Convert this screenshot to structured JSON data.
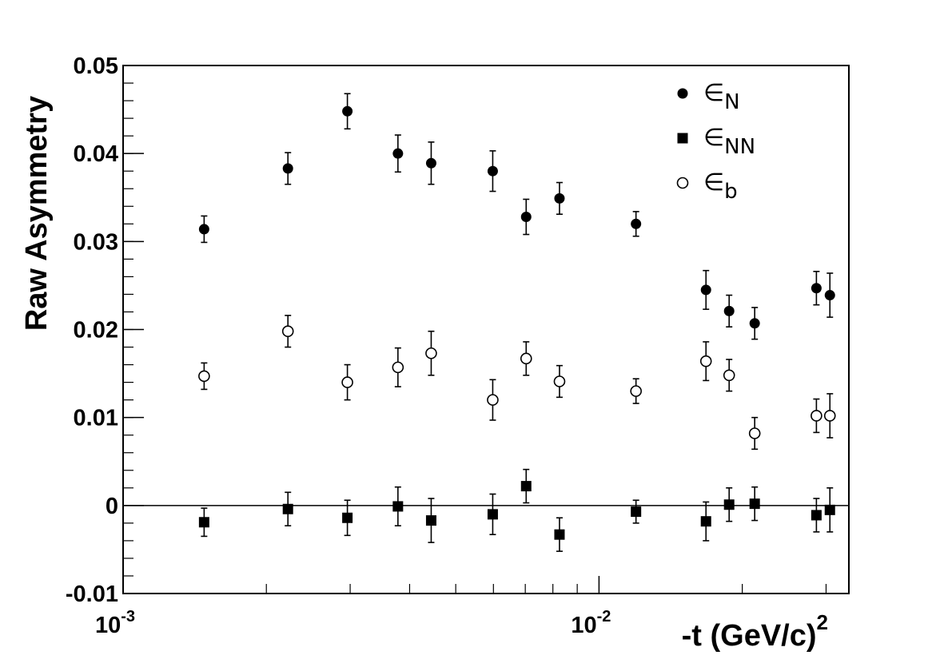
{
  "chart_data": {
    "type": "scatter",
    "xlabel": "-t (GeV/c)",
    "xlabel_sup": "2",
    "ylabel": "Raw Asymmetry",
    "xscale": "log",
    "xlim": [
      0.001,
      0.0335
    ],
    "ylim": [
      -0.01,
      0.05
    ],
    "yticks": [
      {
        "value": -0.01,
        "label": "-0.01"
      },
      {
        "value": 0,
        "label": "0"
      },
      {
        "value": 0.01,
        "label": "0.01"
      },
      {
        "value": 0.02,
        "label": "0.02"
      },
      {
        "value": 0.03,
        "label": "0.03"
      },
      {
        "value": 0.04,
        "label": "0.04"
      },
      {
        "value": 0.05,
        "label": "0.05"
      }
    ],
    "xticks_major": [
      {
        "value": 0.001,
        "base": "10",
        "exp": "-3"
      },
      {
        "value": 0.01,
        "base": "10",
        "exp": "-2"
      }
    ],
    "xticks_minor": [
      0.002,
      0.003,
      0.004,
      0.005,
      0.006,
      0.007,
      0.008,
      0.009,
      0.02,
      0.03
    ],
    "zero_line": true,
    "legend_position": "top-right",
    "series": [
      {
        "name": "N",
        "symbol": "∈",
        "marker": "filled-circle",
        "points": [
          {
            "x": 0.00148,
            "y": 0.0314,
            "err": 0.0015
          },
          {
            "x": 0.00222,
            "y": 0.0383,
            "err": 0.0018
          },
          {
            "x": 0.00296,
            "y": 0.0448,
            "err": 0.002
          },
          {
            "x": 0.00378,
            "y": 0.04,
            "err": 0.0021
          },
          {
            "x": 0.00444,
            "y": 0.0389,
            "err": 0.0024
          },
          {
            "x": 0.00598,
            "y": 0.038,
            "err": 0.0023
          },
          {
            "x": 0.00703,
            "y": 0.0328,
            "err": 0.002
          },
          {
            "x": 0.00826,
            "y": 0.0349,
            "err": 0.0018
          },
          {
            "x": 0.01196,
            "y": 0.032,
            "err": 0.0014
          },
          {
            "x": 0.01678,
            "y": 0.0245,
            "err": 0.0022
          },
          {
            "x": 0.01877,
            "y": 0.0221,
            "err": 0.0018
          },
          {
            "x": 0.02124,
            "y": 0.0207,
            "err": 0.0018
          },
          {
            "x": 0.02863,
            "y": 0.0247,
            "err": 0.0019
          },
          {
            "x": 0.03056,
            "y": 0.0239,
            "err": 0.0025
          }
        ]
      },
      {
        "name": "NN",
        "symbol": "∈",
        "marker": "filled-square",
        "points": [
          {
            "x": 0.00148,
            "y": -0.0019,
            "err": 0.0016
          },
          {
            "x": 0.00222,
            "y": -0.0004,
            "err": 0.0019
          },
          {
            "x": 0.00296,
            "y": -0.0014,
            "err": 0.002
          },
          {
            "x": 0.00378,
            "y": -0.0001,
            "err": 0.0022
          },
          {
            "x": 0.00444,
            "y": -0.0017,
            "err": 0.0025
          },
          {
            "x": 0.00598,
            "y": -0.001,
            "err": 0.0023
          },
          {
            "x": 0.00703,
            "y": 0.0022,
            "err": 0.0019
          },
          {
            "x": 0.00826,
            "y": -0.0033,
            "err": 0.0019
          },
          {
            "x": 0.01196,
            "y": -0.0007,
            "err": 0.0013
          },
          {
            "x": 0.01678,
            "y": -0.0018,
            "err": 0.0022
          },
          {
            "x": 0.01877,
            "y": 0.0001,
            "err": 0.0019
          },
          {
            "x": 0.02124,
            "y": 0.0002,
            "err": 0.0019
          },
          {
            "x": 0.02863,
            "y": -0.0011,
            "err": 0.0019
          },
          {
            "x": 0.03056,
            "y": -0.0005,
            "err": 0.0025
          }
        ]
      },
      {
        "name": "b",
        "symbol": "∈",
        "marker": "open-circle",
        "points": [
          {
            "x": 0.00148,
            "y": 0.0147,
            "err": 0.0015
          },
          {
            "x": 0.00222,
            "y": 0.0198,
            "err": 0.0018
          },
          {
            "x": 0.00296,
            "y": 0.014,
            "err": 0.002
          },
          {
            "x": 0.00378,
            "y": 0.0157,
            "err": 0.0022
          },
          {
            "x": 0.00444,
            "y": 0.0173,
            "err": 0.0025
          },
          {
            "x": 0.00598,
            "y": 0.012,
            "err": 0.0023
          },
          {
            "x": 0.00703,
            "y": 0.0167,
            "err": 0.0019
          },
          {
            "x": 0.00826,
            "y": 0.0141,
            "err": 0.0018
          },
          {
            "x": 0.01196,
            "y": 0.013,
            "err": 0.0014
          },
          {
            "x": 0.01678,
            "y": 0.0164,
            "err": 0.0022
          },
          {
            "x": 0.01877,
            "y": 0.0148,
            "err": 0.0018
          },
          {
            "x": 0.02124,
            "y": 0.0082,
            "err": 0.0018
          },
          {
            "x": 0.02863,
            "y": 0.0102,
            "err": 0.0019
          },
          {
            "x": 0.03056,
            "y": 0.0102,
            "err": 0.0025
          }
        ]
      }
    ]
  }
}
